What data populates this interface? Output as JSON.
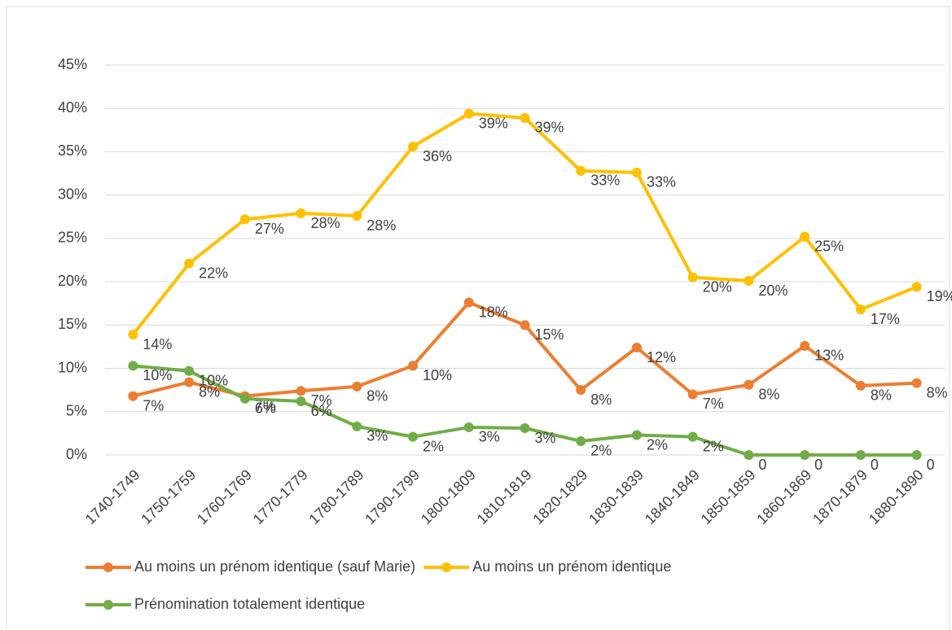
{
  "chart_data": {
    "type": "line",
    "categories": [
      "1740-1749",
      "1750-1759",
      "1760-1769",
      "1770-1779",
      "1780-1789",
      "1790-1799",
      "1800-1809",
      "1810-1819",
      "1820-1829",
      "1830-1839",
      "1840-1849",
      "1850-1859",
      "1860-1869",
      "1870-1879",
      "1880-1890"
    ],
    "series": [
      {
        "name": "Au moins un prénom identique (sauf Marie)",
        "color": "#ed7d31",
        "values": [
          6.8,
          8.4,
          6.8,
          7.4,
          7.9,
          10.3,
          17.6,
          15.0,
          7.5,
          12.4,
          7.0,
          8.1,
          12.6,
          8.0,
          8.3
        ],
        "value_labels": [
          "7%",
          "8%",
          "7%",
          "7%",
          "8%",
          "10%",
          "18%",
          "15%",
          "8%",
          "12%",
          "7%",
          "8%",
          "13%",
          "8%",
          "8%"
        ]
      },
      {
        "name": "Au moins un prénom identique",
        "color": "#ffc000",
        "values": [
          13.9,
          22.1,
          27.2,
          27.9,
          27.6,
          35.6,
          39.4,
          38.9,
          32.8,
          32.6,
          20.5,
          20.1,
          25.2,
          16.8,
          19.4
        ],
        "value_labels": [
          "14%",
          "22%",
          "27%",
          "28%",
          "28%",
          "36%",
          "39%",
          "39%",
          "33%",
          "33%",
          "20%",
          "20%",
          "25%",
          "17%",
          "19%"
        ]
      },
      {
        "name": "Prénomination totalement identique",
        "color": "#70ad47",
        "values": [
          10.3,
          9.7,
          6.5,
          6.2,
          3.3,
          2.1,
          3.2,
          3.1,
          1.6,
          2.3,
          2.1,
          0,
          0,
          0,
          0
        ],
        "value_labels": [
          "10%",
          "10%",
          "6%",
          "6%",
          "3%",
          "2%",
          "3%",
          "3%",
          "2%",
          "2%",
          "2%",
          "0",
          "0",
          "0",
          "0"
        ]
      }
    ],
    "ylim": [
      0,
      45
    ],
    "yticks": [
      {
        "value": 0,
        "label": "0%"
      },
      {
        "value": 5,
        "label": "5%"
      },
      {
        "value": 10,
        "label": "10%"
      },
      {
        "value": 15,
        "label": "15%"
      },
      {
        "value": 20,
        "label": "20%"
      },
      {
        "value": 25,
        "label": "25%"
      },
      {
        "value": 30,
        "label": "30%"
      },
      {
        "value": 35,
        "label": "35%"
      },
      {
        "value": 40,
        "label": "40%"
      },
      {
        "value": 45,
        "label": "45%"
      }
    ],
    "grid": true,
    "legend": "bottom"
  }
}
